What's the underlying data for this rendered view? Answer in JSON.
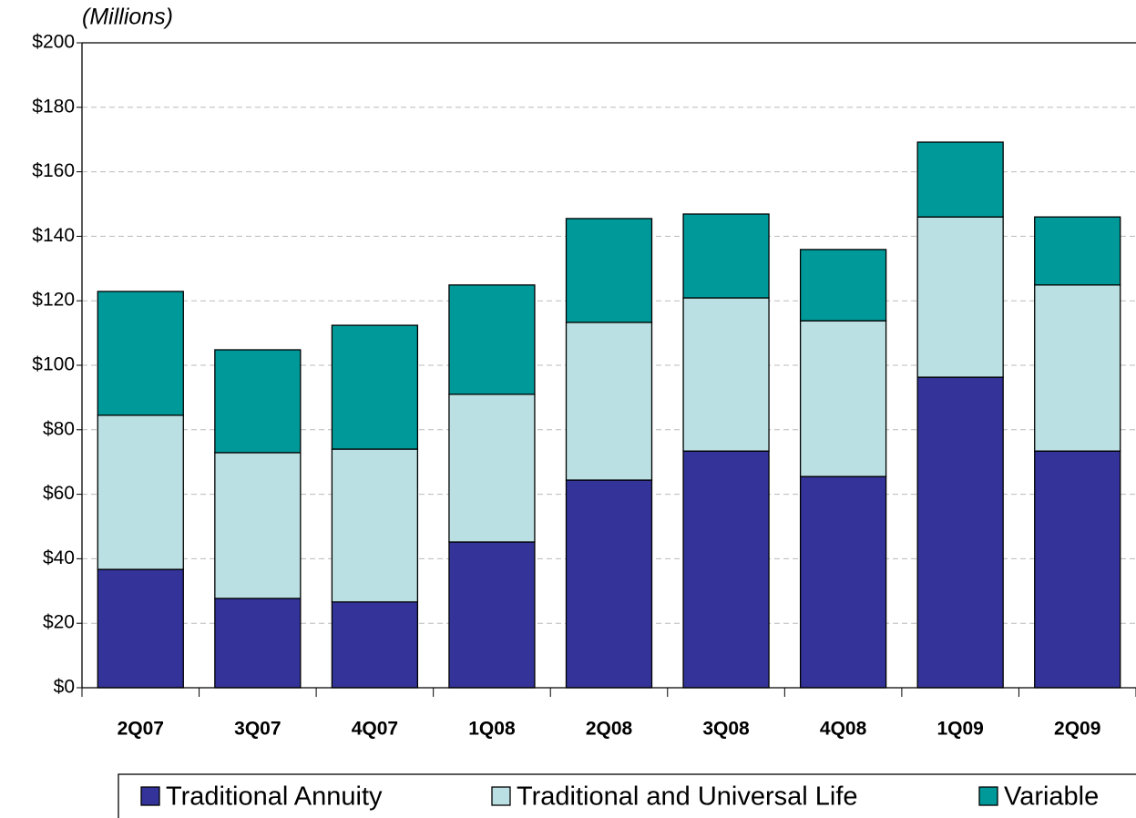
{
  "chart_data": {
    "type": "stacked_bar",
    "subtitle": "(Millions)",
    "categories": [
      "2Q07",
      "3Q07",
      "4Q07",
      "1Q08",
      "2Q08",
      "3Q08",
      "4Q08",
      "1Q09",
      "2Q09"
    ],
    "series": [
      {
        "name": "Traditional Annuity",
        "color": "#333399",
        "values": [
          36.7,
          27.7,
          26.6,
          45.2,
          64.4,
          73.4,
          65.5,
          96.3,
          73.4
        ]
      },
      {
        "name": "Traditional and Universal Life",
        "color": "#bbe0e3",
        "values": [
          47.8,
          45.2,
          47.4,
          45.8,
          48.9,
          47.5,
          48.3,
          49.7,
          51.5
        ]
      },
      {
        "name": "Variable",
        "color": "#009999",
        "values": [
          38.4,
          31.9,
          38.4,
          33.9,
          32.2,
          26.0,
          22.1,
          23.2,
          21.1
        ]
      }
    ],
    "ylim": [
      0,
      200
    ],
    "yticks": [
      {
        "value": 0,
        "label": "$0"
      },
      {
        "value": 20,
        "label": "$20"
      },
      {
        "value": 40,
        "label": "$40"
      },
      {
        "value": 60,
        "label": "$60"
      },
      {
        "value": 80,
        "label": "$80"
      },
      {
        "value": 100,
        "label": "$100"
      },
      {
        "value": 120,
        "label": "$120"
      },
      {
        "value": 140,
        "label": "$140"
      },
      {
        "value": 160,
        "label": "$160"
      },
      {
        "value": 180,
        "label": "$180"
      },
      {
        "value": 200,
        "label": "$200"
      }
    ],
    "grid": true,
    "legend": "bottom"
  }
}
